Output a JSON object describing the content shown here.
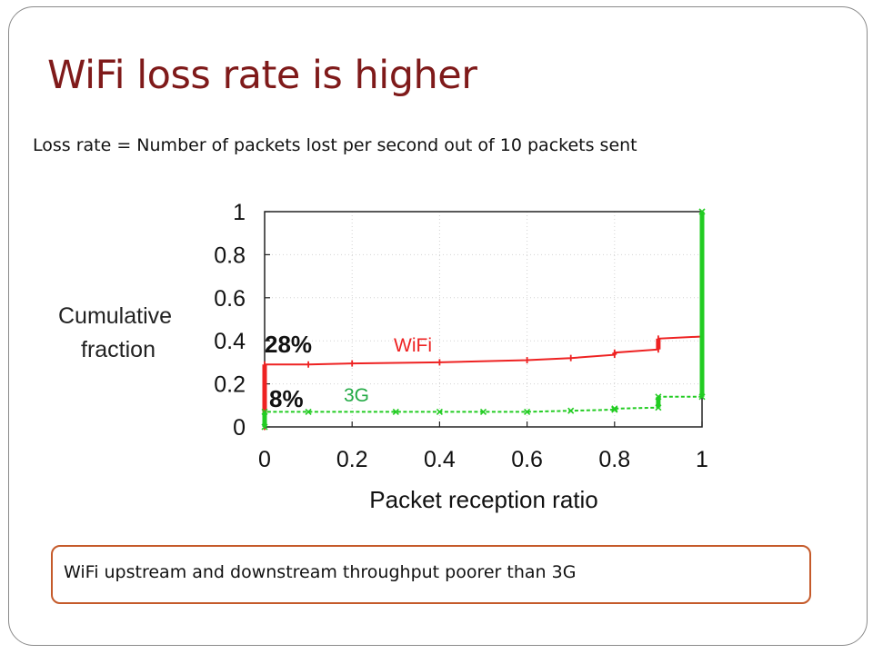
{
  "slide": {
    "title": "WiFi loss rate is higher",
    "subtitle": "Loss rate = Number of packets lost per second out of 10 packets sent",
    "callout": "WiFi upstream and downstream throughput poorer than 3G"
  },
  "chart_data": {
    "type": "line",
    "title": "",
    "xlabel": "Packet reception ratio",
    "ylabel_lines": [
      "Cumulative",
      "fraction"
    ],
    "xlim": [
      0,
      1
    ],
    "ylim": [
      0,
      1
    ],
    "x_ticks": [
      {
        "value": 0,
        "label": "0"
      },
      {
        "value": 0.2,
        "label": "0.2"
      },
      {
        "value": 0.4,
        "label": "0.4"
      },
      {
        "value": 0.6,
        "label": "0.6"
      },
      {
        "value": 0.8,
        "label": "0.8"
      },
      {
        "value": 1,
        "label": "1"
      }
    ],
    "y_ticks": [
      {
        "value": 0,
        "label": "0"
      },
      {
        "value": 0.2,
        "label": "0.2"
      },
      {
        "value": 0.4,
        "label": "0.4"
      },
      {
        "value": 0.6,
        "label": "0.6"
      },
      {
        "value": 0.8,
        "label": "0.8"
      },
      {
        "value": 1,
        "label": "1"
      }
    ],
    "grid": true,
    "series": [
      {
        "name": "WiFi",
        "color": "#ee2222",
        "dash": "solid",
        "marker": "tick",
        "points": [
          [
            0,
            0
          ],
          [
            0,
            0.29
          ],
          [
            0.1,
            0.29
          ],
          [
            0.2,
            0.295
          ],
          [
            0.4,
            0.3
          ],
          [
            0.6,
            0.31
          ],
          [
            0.7,
            0.32
          ],
          [
            0.8,
            0.335
          ],
          [
            0.8,
            0.345
          ],
          [
            0.9,
            0.36
          ],
          [
            0.9,
            0.41
          ],
          [
            1,
            0.42
          ]
        ]
      },
      {
        "name": "3G",
        "color": "#22cc22",
        "dash": "dashed",
        "marker": "x",
        "points": [
          [
            0,
            0
          ],
          [
            0,
            0.07
          ],
          [
            0.1,
            0.07
          ],
          [
            0.3,
            0.07
          ],
          [
            0.4,
            0.07
          ],
          [
            0.5,
            0.07
          ],
          [
            0.6,
            0.07
          ],
          [
            0.7,
            0.075
          ],
          [
            0.8,
            0.08
          ],
          [
            0.8,
            0.085
          ],
          [
            0.9,
            0.09
          ],
          [
            0.9,
            0.14
          ],
          [
            1,
            0.14
          ],
          [
            1,
            1
          ]
        ]
      }
    ],
    "annotations": [
      {
        "text": "28%",
        "color": "#111111",
        "bold": true
      },
      {
        "text": "8%",
        "color": "#111111",
        "bold": true
      }
    ]
  }
}
